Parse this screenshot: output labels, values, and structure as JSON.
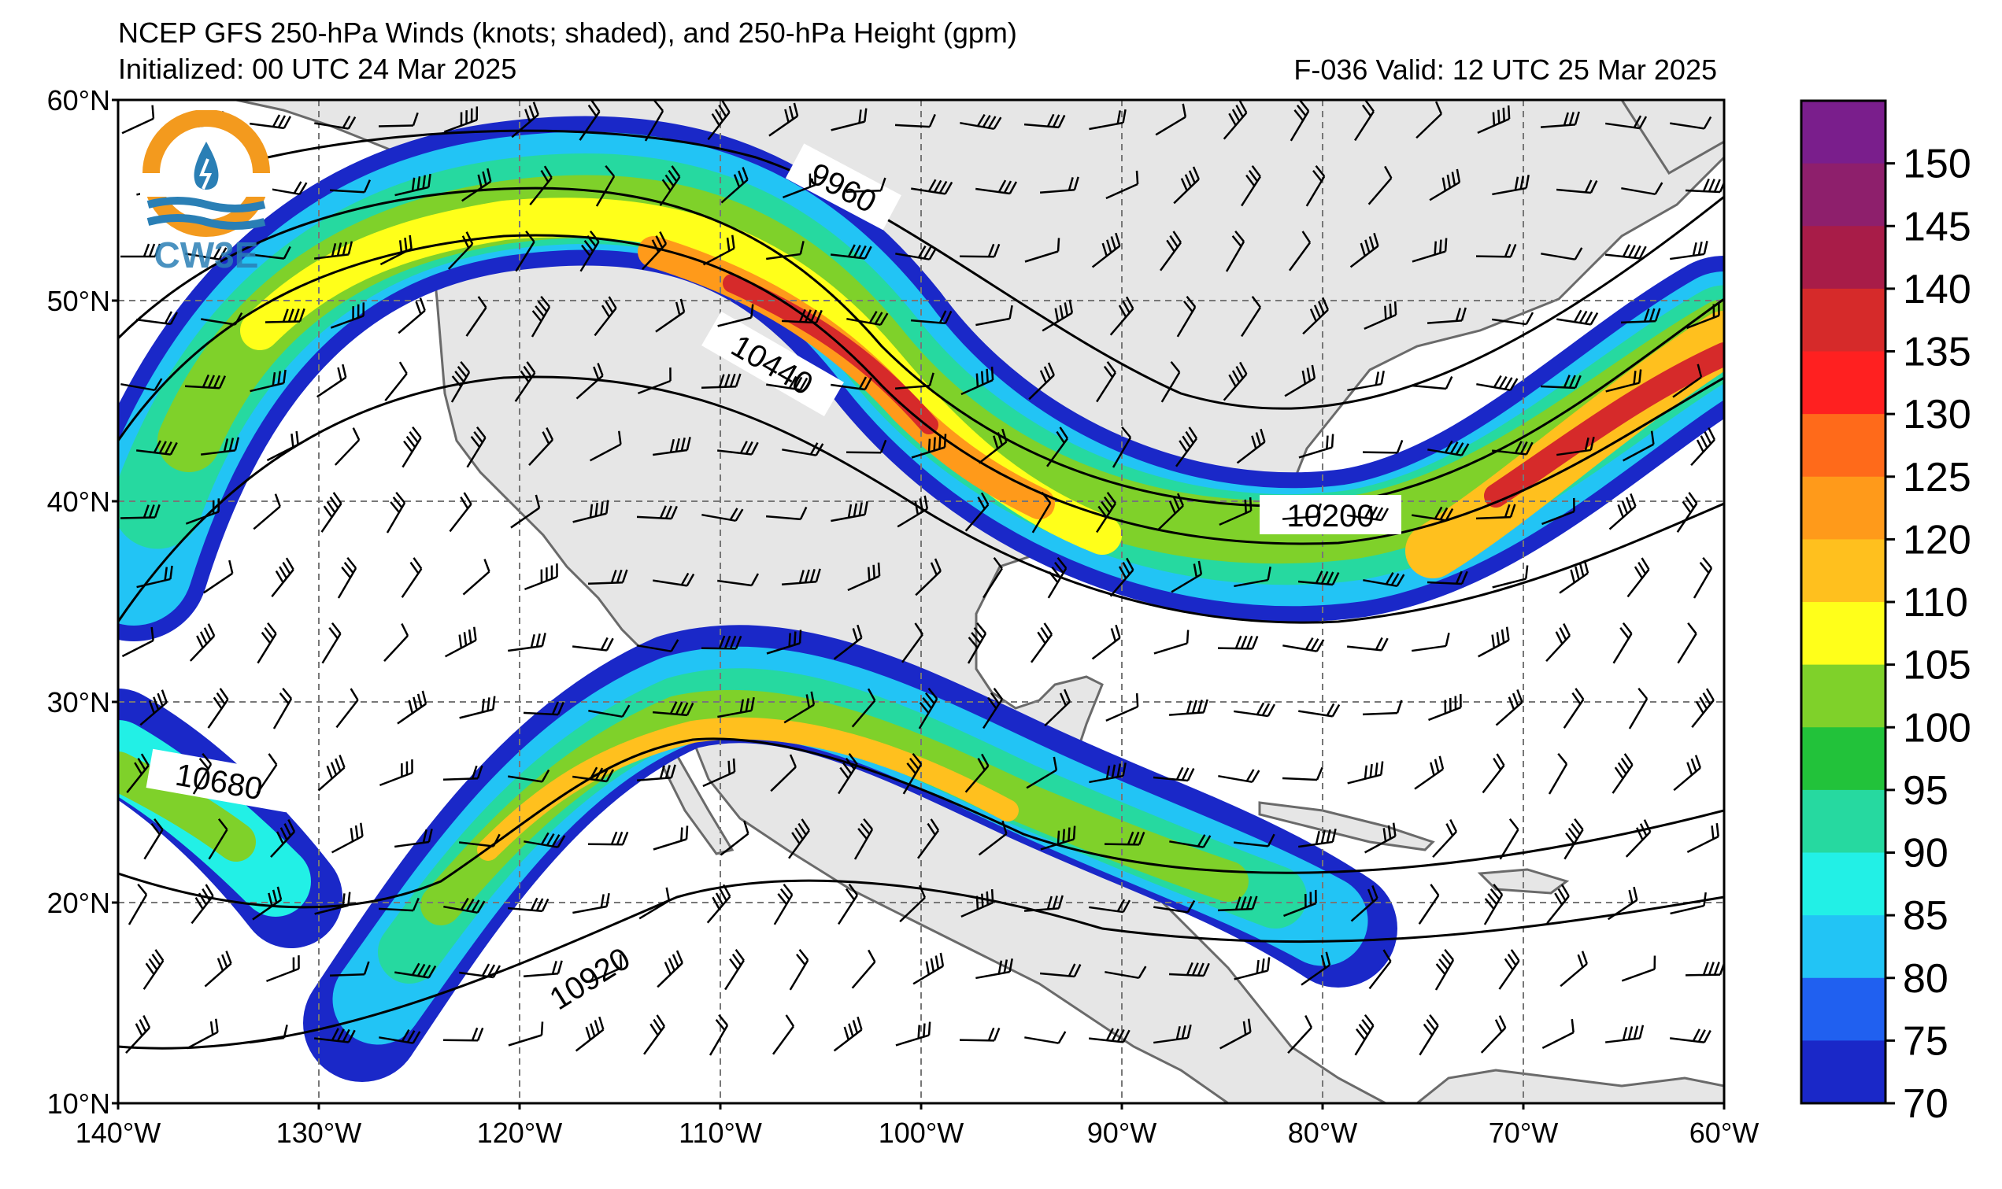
{
  "title": {
    "line1": "NCEP GFS 250-hPa Winds (knots; shaded), and 250-hPa Height (gpm)",
    "line2": "Initialized: 00 UTC 24 Mar 2025",
    "valid": "F-036  Valid: 12 UTC 25 Mar 2025"
  },
  "logo": {
    "text": "CW3E"
  },
  "map": {
    "lon_range": [
      -140,
      -60
    ],
    "lat_range": [
      10,
      60
    ],
    "lat_labels": [
      "60°N",
      "50°N",
      "40°N",
      "30°N",
      "20°N",
      "10°N"
    ],
    "lon_labels": [
      "140°W",
      "130°W",
      "120°W",
      "110°W",
      "100°W",
      "90°W",
      "80°W",
      "70°W",
      "60°W"
    ],
    "gridlines": "dashed",
    "land_color": "#e6e6e6",
    "ocean_color": "#ffffff"
  },
  "height_contours": {
    "unit": "gpm",
    "labels": [
      "9960",
      "10440",
      "10200",
      "10680",
      "10920"
    ]
  },
  "colorbar": {
    "unit": "knots",
    "ticks": [
      "150",
      "145",
      "140",
      "135",
      "130",
      "125",
      "120",
      "110",
      "105",
      "100",
      "95",
      "90",
      "85",
      "80",
      "75",
      "70"
    ],
    "colors": [
      "#7a1e8c",
      "#8e1f6c",
      "#a81c48",
      "#d62a2a",
      "#ff2020",
      "#ff6a1a",
      "#ff9a1a",
      "#ffc01e",
      "#ffff1a",
      "#7fd12a",
      "#22c23a",
      "#26d9a0",
      "#22f0e6",
      "#22c4f5",
      "#2060f0",
      "#1a28c8"
    ]
  }
}
